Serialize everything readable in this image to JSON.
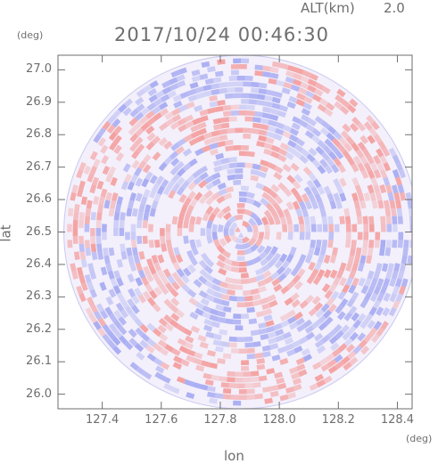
{
  "header": {
    "altitude_label": "ALT(km)",
    "altitude_value": "2.0",
    "timestamp": "2017/10/24 00:46:30"
  },
  "chart_data": {
    "type": "heatmap",
    "title": "2017/10/24 00:46:30",
    "xlabel": "lon",
    "ylabel": "lat",
    "x_unit": "(deg)",
    "y_unit": "(deg)",
    "xlim": [
      127.25,
      128.45
    ],
    "ylim": [
      25.955,
      27.045
    ],
    "x_ticks": [
      127.4,
      127.6,
      127.8,
      128.0,
      128.2,
      128.4
    ],
    "x_tick_labels": [
      "127.4",
      "127.6",
      "127.8",
      "128.0",
      "128.2",
      "128.4"
    ],
    "y_ticks": [
      26.0,
      26.1,
      26.2,
      26.3,
      26.4,
      26.5,
      26.6,
      26.7,
      26.8,
      26.9,
      27.0
    ],
    "y_tick_labels": [
      "26.0",
      "26.1",
      "26.2",
      "26.3",
      "26.4",
      "26.5",
      "26.6",
      "26.7",
      "26.8",
      "26.9",
      "27.0"
    ],
    "center_lon": 127.87,
    "center_lat": 26.5,
    "radius_lon_deg": 0.6,
    "radius_lat_deg": 0.55,
    "grid": false,
    "colors": {
      "positive": "#f4a0a0",
      "negative": "#a8acf2",
      "neutral": "#ffffff",
      "axis": "#6e6e6e"
    }
  }
}
